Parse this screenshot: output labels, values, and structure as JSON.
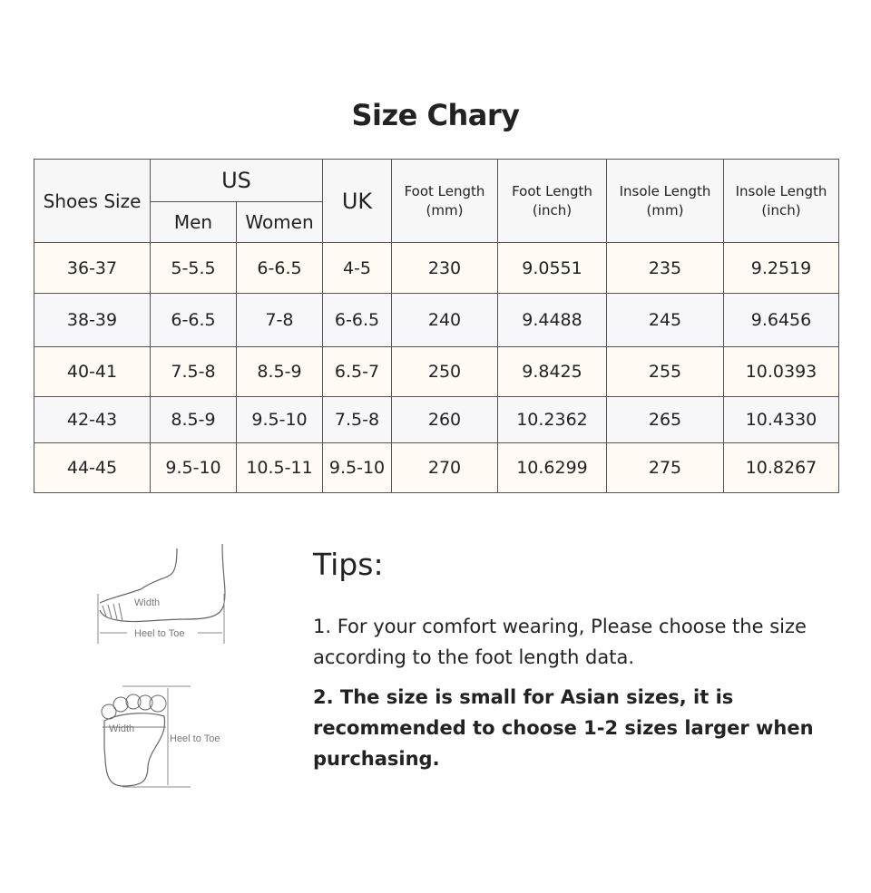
{
  "title": "Size Chary",
  "table": {
    "headers": {
      "shoes_size": "Shoes Size",
      "us": "US",
      "us_men": "Men",
      "us_women": "Women",
      "uk": "UK",
      "foot_length_mm": [
        "Foot Length",
        "(mm)"
      ],
      "foot_length_inch": [
        "Foot Length",
        "(inch)"
      ],
      "insole_length_mm": [
        "Insole Length",
        "(mm)"
      ],
      "insole_length_inch": [
        "Insole Length",
        "(inch)"
      ]
    },
    "rows": [
      [
        "36-37",
        "5-5.5",
        "6-6.5",
        "4-5",
        "230",
        "9.0551",
        "235",
        "9.2519"
      ],
      [
        "38-39",
        "6-6.5",
        "7-8",
        "6-6.5",
        "240",
        "9.4488",
        "245",
        "9.6456"
      ],
      [
        "40-41",
        "7.5-8",
        "8.5-9",
        "6.5-7",
        "250",
        "9.8425",
        "255",
        "10.0393"
      ],
      [
        "42-43",
        "8.5-9",
        "9.5-10",
        "7.5-8",
        "260",
        "10.2362",
        "265",
        "10.4330"
      ],
      [
        "44-45",
        "9.5-10",
        "10.5-11",
        "9.5-10",
        "270",
        "10.6299",
        "275",
        "10.8267"
      ]
    ]
  },
  "diagram": {
    "width_label": "Width",
    "length_label": "Heel to Toe"
  },
  "tips": {
    "heading": "Tips:",
    "items": [
      "1. For your comfort wearing, Please choose the size according to the foot length data.",
      "2. The size is small for Asian sizes, it is recommended to choose 1-2 sizes larger when purchasing."
    ]
  }
}
